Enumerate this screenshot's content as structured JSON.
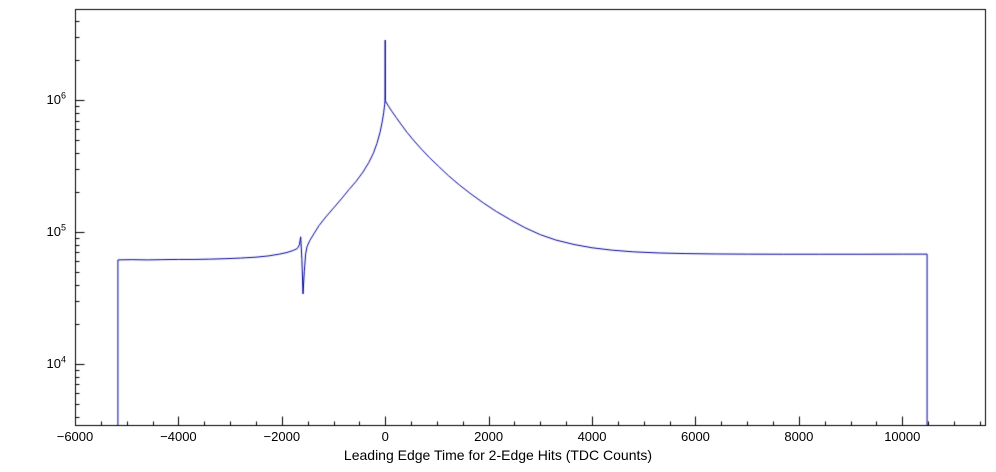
{
  "figure": {
    "background": "#ffffff"
  },
  "chart_data": {
    "type": "line",
    "title": "",
    "xlabel": "Leading Edge Time for 2-Edge Hits (TDC Counts)",
    "ylabel": "",
    "x_axis_scale": "linear",
    "y_axis_scale": "log",
    "xlim": [
      -6000,
      11600
    ],
    "ylim_log10": [
      3.538,
      6.69
    ],
    "grid": false,
    "legend": false,
    "line_color": "#000099",
    "axis_color": "#000000",
    "background": "#ffffff",
    "x_major_ticks": [
      {
        "value": -6000,
        "label": "−6000"
      },
      {
        "value": -4000,
        "label": "−4000"
      },
      {
        "value": -2000,
        "label": "−2000"
      },
      {
        "value": 0,
        "label": "0"
      },
      {
        "value": 2000,
        "label": "2000"
      },
      {
        "value": 4000,
        "label": "4000"
      },
      {
        "value": 6000,
        "label": "6000"
      },
      {
        "value": 8000,
        "label": "8000"
      },
      {
        "value": 10000,
        "label": "10000"
      }
    ],
    "x_minor_step": 500,
    "y_major_ticks": [
      {
        "log": 4,
        "base": "10",
        "exp": "4"
      },
      {
        "log": 5,
        "base": "10",
        "exp": "5"
      },
      {
        "log": 6,
        "base": "10",
        "exp": "6"
      }
    ],
    "series": [
      {
        "name": "leading-edge-time-2-edge-hits",
        "points": [
          [
            -5170,
            3400
          ],
          [
            -5170,
            61500
          ],
          [
            -4900,
            61800
          ],
          [
            -4600,
            61500
          ],
          [
            -4300,
            61800
          ],
          [
            -4000,
            62000
          ],
          [
            -3700,
            62000
          ],
          [
            -3400,
            62300
          ],
          [
            -3100,
            62800
          ],
          [
            -2800,
            63500
          ],
          [
            -2500,
            64500
          ],
          [
            -2250,
            66000
          ],
          [
            -2050,
            68000
          ],
          [
            -1900,
            70000
          ],
          [
            -1780,
            72500
          ],
          [
            -1700,
            75000
          ],
          [
            -1660,
            80000
          ],
          [
            -1635,
            92000
          ],
          [
            -1612,
            62000
          ],
          [
            -1590,
            34000
          ],
          [
            -1565,
            50000
          ],
          [
            -1540,
            68000
          ],
          [
            -1510,
            78000
          ],
          [
            -1460,
            86000
          ],
          [
            -1380,
            97000
          ],
          [
            -1280,
            112000
          ],
          [
            -1150,
            130000
          ],
          [
            -1000,
            152000
          ],
          [
            -850,
            178000
          ],
          [
            -700,
            210000
          ],
          [
            -560,
            243000
          ],
          [
            -430,
            285000
          ],
          [
            -320,
            335000
          ],
          [
            -230,
            395000
          ],
          [
            -160,
            470000
          ],
          [
            -100,
            570000
          ],
          [
            -60,
            680000
          ],
          [
            -30,
            800000
          ],
          [
            -12,
            920000
          ],
          [
            -4,
            990000
          ],
          [
            0,
            2850000
          ],
          [
            4,
            990000
          ],
          [
            25,
            950000
          ],
          [
            70,
            890000
          ],
          [
            130,
            820000
          ],
          [
            210,
            740000
          ],
          [
            300,
            660000
          ],
          [
            420,
            570000
          ],
          [
            560,
            490000
          ],
          [
            700,
            425000
          ],
          [
            860,
            365000
          ],
          [
            1030,
            315000
          ],
          [
            1220,
            268000
          ],
          [
            1430,
            228000
          ],
          [
            1660,
            194000
          ],
          [
            1900,
            166000
          ],
          [
            2150,
            143000
          ],
          [
            2420,
            124000
          ],
          [
            2700,
            108000
          ],
          [
            3000,
            95500
          ],
          [
            3300,
            87000
          ],
          [
            3650,
            80500
          ],
          [
            4000,
            76000
          ],
          [
            4400,
            72800
          ],
          [
            4800,
            70800
          ],
          [
            5300,
            69400
          ],
          [
            5800,
            68700
          ],
          [
            6400,
            68200
          ],
          [
            7000,
            68000
          ],
          [
            7700,
            67900
          ],
          [
            8400,
            67900
          ],
          [
            9200,
            67900
          ],
          [
            10000,
            68000
          ],
          [
            10480,
            68000
          ],
          [
            10480,
            3400
          ]
        ]
      }
    ]
  }
}
